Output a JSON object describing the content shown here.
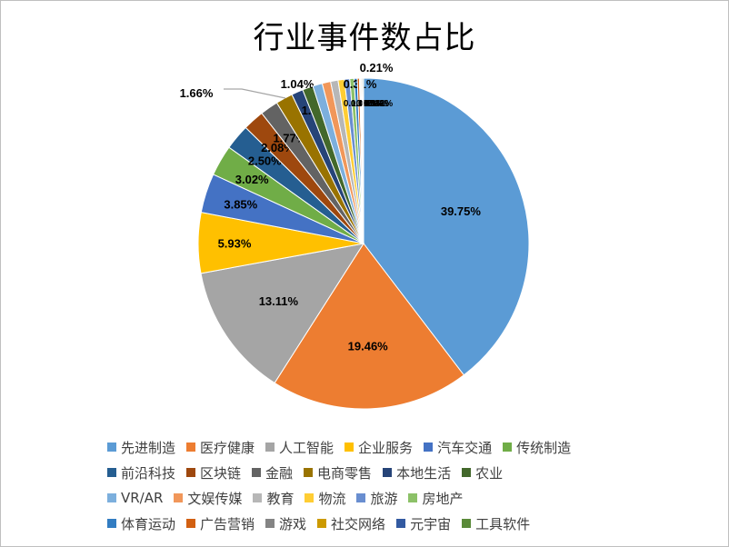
{
  "chart_data": {
    "type": "pie",
    "title": "行业事件数占比",
    "legend_position": "bottom",
    "slices": [
      {
        "label": "先进制造",
        "value": 39.75,
        "display": "39.75%",
        "color": "#5b9bd5"
      },
      {
        "label": "医疗健康",
        "value": 19.46,
        "display": "19.46%",
        "color": "#ed7d31"
      },
      {
        "label": "人工智能",
        "value": 13.11,
        "display": "13.11%",
        "color": "#a5a5a5"
      },
      {
        "label": "企业服务",
        "value": 5.93,
        "display": "5.93%",
        "color": "#ffc000"
      },
      {
        "label": "汽车交通",
        "value": 3.85,
        "display": "3.85%",
        "color": "#4472c4"
      },
      {
        "label": "传统制造",
        "value": 3.02,
        "display": "3.02%",
        "color": "#70ad47"
      },
      {
        "label": "前沿科技",
        "value": 2.5,
        "display": "2.50%",
        "color": "#255e91"
      },
      {
        "label": "区块链",
        "value": 2.08,
        "display": "2.08%",
        "color": "#9e480e"
      },
      {
        "label": "金融",
        "value": 1.77,
        "display": "1.77%",
        "color": "#636363"
      },
      {
        "label": "电商零售",
        "value": 1.66,
        "display": "1.66%",
        "color": "#997300"
      },
      {
        "label": "本地生活",
        "value": 1.14,
        "display": "1.14%",
        "color": "#264478"
      },
      {
        "label": "农业",
        "value": 1.04,
        "display": "1.04%",
        "color": "#43682b"
      },
      {
        "label": "VR/AR",
        "value": 0.94,
        "display": "0.94%",
        "color": "#7cafdd"
      },
      {
        "label": "文娱传媒",
        "value": 0.83,
        "display": "0.83%",
        "color": "#f1975a"
      },
      {
        "label": "教育",
        "value": 0.73,
        "display": "0.73%",
        "color": "#b7b7b7"
      },
      {
        "label": "物流",
        "value": 0.62,
        "display": "0.62%",
        "color": "#ffcd33"
      },
      {
        "label": "旅游",
        "value": 0.52,
        "display": "0.52%",
        "color": "#698ed0"
      },
      {
        "label": "房地产",
        "value": 0.42,
        "display": "0.42%",
        "color": "#8cc168"
      },
      {
        "label": "体育运动",
        "value": 0.31,
        "display": "0.31%",
        "color": "#327dc2"
      },
      {
        "label": "广告营销",
        "value": 0.21,
        "display": "0.21%",
        "color": "#d26012"
      },
      {
        "label": "游戏",
        "value": 0.1,
        "display": "0.10%",
        "color": "#848484"
      },
      {
        "label": "社交网络",
        "value": 0.1,
        "display": "0.10%",
        "color": "#cc9a00"
      },
      {
        "label": "元宇宙",
        "value": 0.1,
        "display": "0.10%",
        "color": "#335aa1"
      },
      {
        "label": "工具软件",
        "value": 0.1,
        "display": "0.10%",
        "color": "#5a8a39"
      }
    ]
  }
}
